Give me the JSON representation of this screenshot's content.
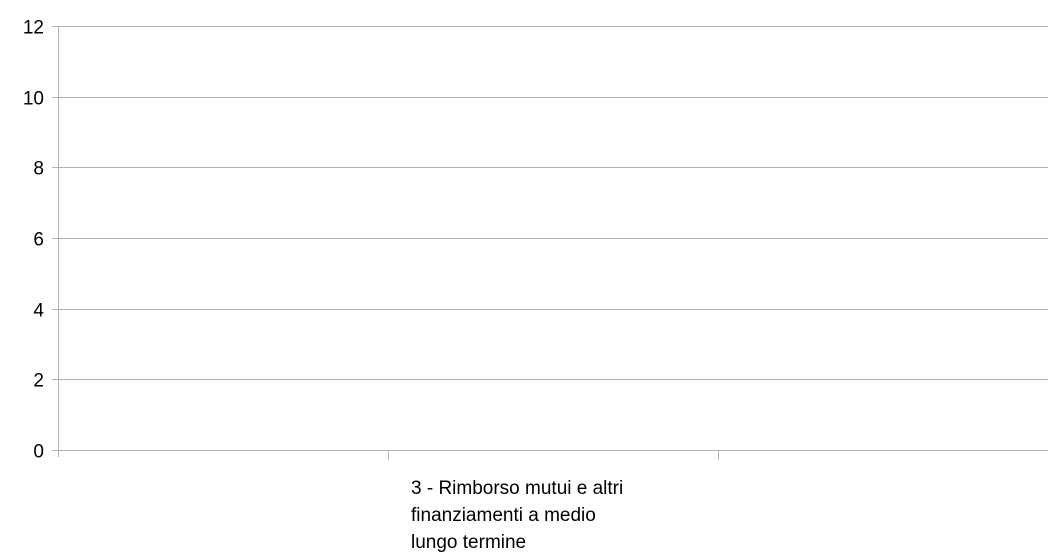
{
  "chart_data": {
    "type": "bar",
    "title": "",
    "xlabel": "",
    "ylabel": "",
    "categories": [
      "3 - Rimborso mutui e altri finanziamenti a medio lungo termine"
    ],
    "category_label_lines": [
      [
        "3 - Rimborso mutui e altri",
        "finanziamenti a medio",
        "lungo termine"
      ]
    ],
    "series": [
      {
        "values": [
          0
        ]
      }
    ],
    "ylim": [
      0,
      12
    ],
    "yticks": [
      0,
      2,
      4,
      6,
      8,
      10,
      12
    ],
    "grid": true,
    "legend": "none",
    "colors": {
      "grid": "#b3b3b3",
      "axis": "#b3b3b3",
      "text": "#000000"
    }
  }
}
